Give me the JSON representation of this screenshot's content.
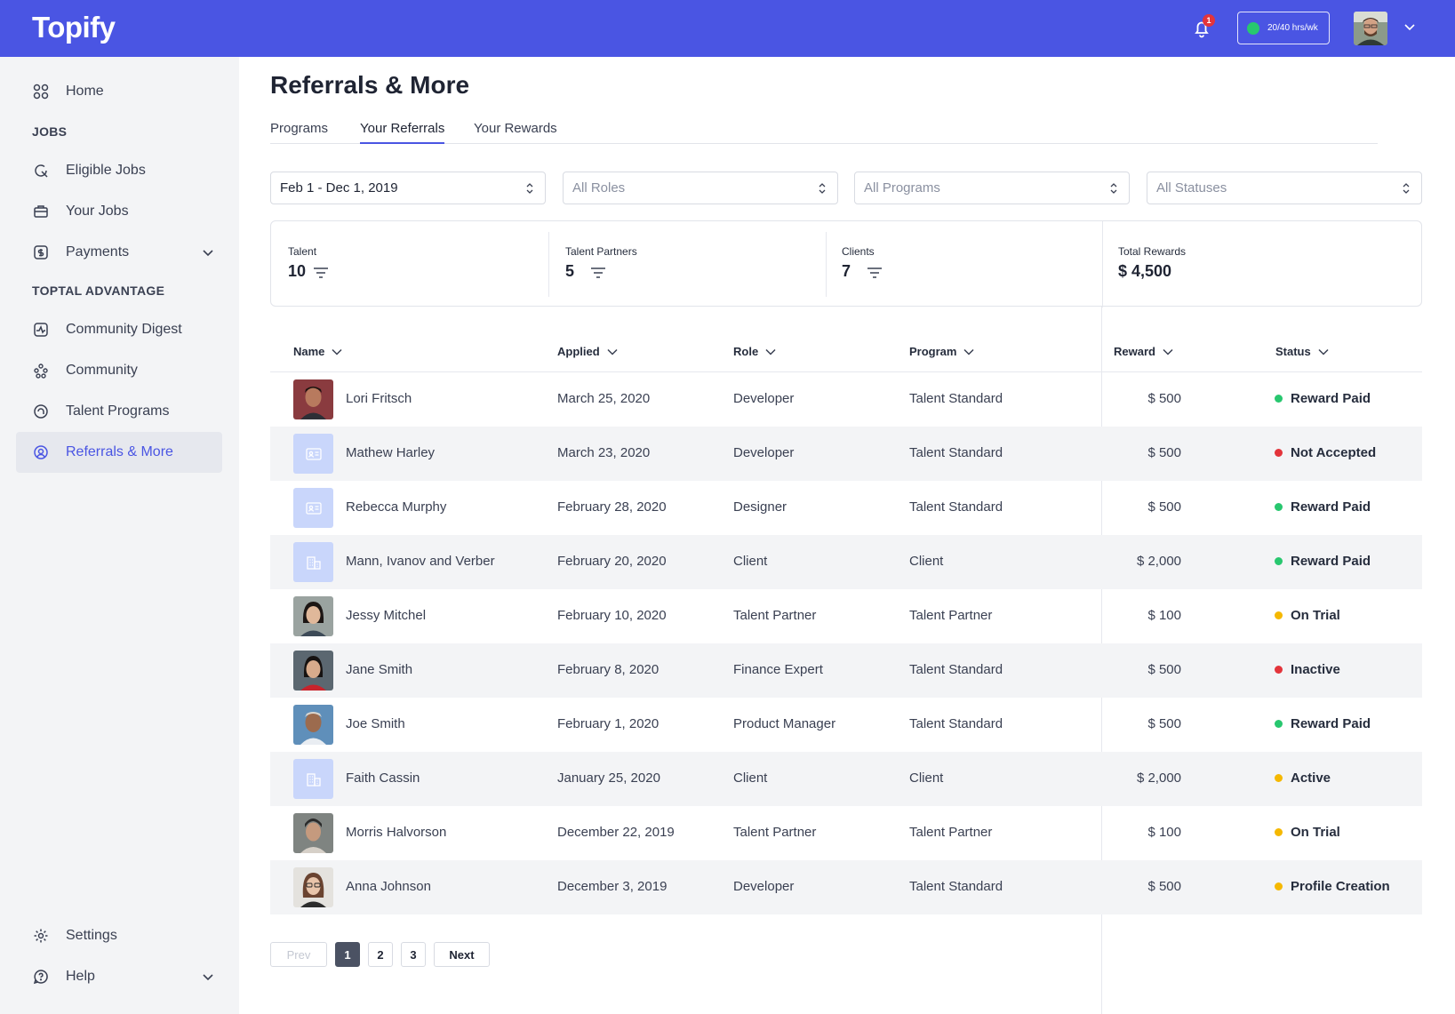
{
  "app": {
    "logo": "Topify"
  },
  "header": {
    "notification_count": "1",
    "hours_label": "20/40 hrs/wk",
    "status_color": "#28c76f"
  },
  "sidebar": {
    "home": "Home",
    "jobs_section": "JOBS",
    "eligible_jobs": "Eligible Jobs",
    "your_jobs": "Your Jobs",
    "payments": "Payments",
    "advantage_section": "TOPTAL ADVANTAGE",
    "community_digest": "Community Digest",
    "community": "Community",
    "talent_programs": "Talent Programs",
    "referrals": "Referrals & More",
    "settings": "Settings",
    "help": "Help"
  },
  "page": {
    "title": "Referrals & More"
  },
  "tabs": {
    "programs": "Programs",
    "your_referrals": "Your Referrals",
    "your_rewards": "Your Rewards"
  },
  "filters": {
    "date": "Feb 1 - Dec 1, 2019",
    "roles": "All Roles",
    "programs": "All Programs",
    "statuses": "All Statuses"
  },
  "stats": {
    "talent": {
      "label": "Talent",
      "value": "10"
    },
    "partners": {
      "label": "Talent Partners",
      "value": "5"
    },
    "clients": {
      "label": "Clients",
      "value": "7"
    },
    "rewards": {
      "label": "Total Rewards",
      "value": "$ 4,500"
    }
  },
  "table": {
    "headers": {
      "name": "Name",
      "applied": "Applied",
      "role": "Role",
      "program": "Program",
      "reward": "Reward",
      "status": "Status"
    },
    "rows": [
      {
        "name": "Lori Fritsch",
        "applied": "March 25, 2020",
        "role": "Developer",
        "program": "Talent Standard",
        "reward": "$ 500",
        "status": "Reward Paid",
        "status_color": "#28c76f",
        "avatar": "photo-man-1"
      },
      {
        "name": "Mathew Harley",
        "applied": "March 23, 2020",
        "role": "Developer",
        "program": "Talent Standard",
        "reward": "$ 500",
        "status": "Not Accepted",
        "status_color": "#e3343b",
        "avatar": "id-card-icon"
      },
      {
        "name": "Rebecca Murphy",
        "applied": "February 28, 2020",
        "role": "Designer",
        "program": "Talent Standard",
        "reward": "$ 500",
        "status": "Reward Paid",
        "status_color": "#28c76f",
        "avatar": "id-card-icon"
      },
      {
        "name": "Mann, Ivanov and Verber",
        "applied": "February 20, 2020",
        "role": "Client",
        "program": "Client",
        "reward": "$ 2,000",
        "status": "Reward Paid",
        "status_color": "#28c76f",
        "avatar": "building-icon"
      },
      {
        "name": "Jessy Mitchel",
        "applied": "February 10, 2020",
        "role": "Talent Partner",
        "program": "Talent Partner",
        "reward": "$ 100",
        "status": "On Trial",
        "status_color": "#f5b800",
        "avatar": "photo-woman-1"
      },
      {
        "name": "Jane Smith",
        "applied": "February 8, 2020",
        "role": "Finance Expert",
        "program": "Talent Standard",
        "reward": "$ 500",
        "status": "Inactive",
        "status_color": "#e3343b",
        "avatar": "photo-woman-2"
      },
      {
        "name": "Joe Smith",
        "applied": "February 1, 2020",
        "role": "Product Manager",
        "program": "Talent Standard",
        "reward": "$ 500",
        "status": "Reward Paid",
        "status_color": "#28c76f",
        "avatar": "photo-man-2"
      },
      {
        "name": "Faith Cassin",
        "applied": "January 25, 2020",
        "role": "Client",
        "program": "Client",
        "reward": "$ 2,000",
        "status": "Active",
        "status_color": "#f5b800",
        "avatar": "building-icon"
      },
      {
        "name": "Morris Halvorson",
        "applied": "December 22, 2019",
        "role": "Talent Partner",
        "program": "Talent Partner",
        "reward": "$ 100",
        "status": "On Trial",
        "status_color": "#f5b800",
        "avatar": "photo-man-3"
      },
      {
        "name": "Anna Johnson",
        "applied": "December 3, 2019",
        "role": "Developer",
        "program": "Talent Standard",
        "reward": "$ 500",
        "status": "Profile Creation",
        "status_color": "#f5b800",
        "avatar": "photo-woman-3"
      }
    ]
  },
  "pagination": {
    "prev": "Prev",
    "pages": [
      "1",
      "2",
      "3"
    ],
    "next": "Next"
  }
}
